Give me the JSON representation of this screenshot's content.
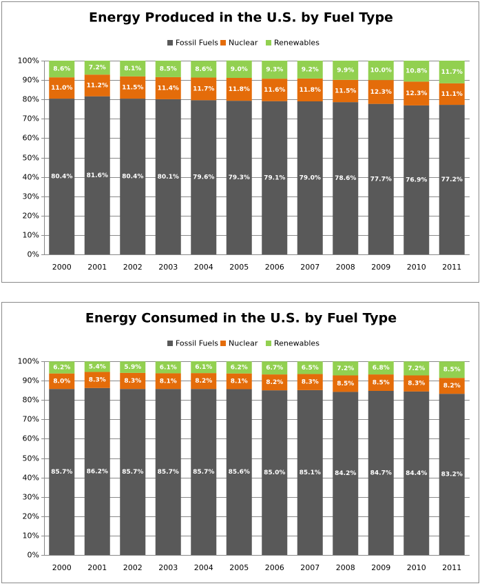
{
  "chart_data": [
    {
      "type": "stacked-bar",
      "title": "Energy Produced in the U.S. by Fuel Type",
      "categories": [
        "2000",
        "2001",
        "2002",
        "2003",
        "2004",
        "2005",
        "2006",
        "2007",
        "2008",
        "2009",
        "2010",
        "2011"
      ],
      "series": [
        {
          "name": "Fossil Fuels",
          "color": "#595959",
          "values": [
            80.4,
            81.6,
            80.4,
            80.1,
            79.6,
            79.3,
            79.1,
            79.0,
            78.6,
            77.7,
            76.9,
            77.2
          ],
          "value_labels": [
            "80.4%",
            "81.6%",
            "80.4%",
            "80.1%",
            "79.6%",
            "79.3%",
            "79.1%",
            "79.0%",
            "78.6%",
            "77.7%",
            "76.9%",
            "77.2%"
          ]
        },
        {
          "name": "Nuclear",
          "color": "#e46c0a",
          "values": [
            11.0,
            11.2,
            11.5,
            11.4,
            11.7,
            11.8,
            11.6,
            11.8,
            11.5,
            12.3,
            12.3,
            11.1
          ],
          "value_labels": [
            "11.0%",
            "11.2%",
            "11.5%",
            "11.4%",
            "11.7%",
            "11.8%",
            "11.6%",
            "11.8%",
            "11.5%",
            "12.3%",
            "12.3%",
            "11.1%"
          ]
        },
        {
          "name": "Renewables",
          "color": "#92d050",
          "values": [
            8.6,
            7.2,
            8.1,
            8.5,
            8.6,
            9.0,
            9.3,
            9.2,
            9.9,
            10.0,
            10.8,
            11.7
          ],
          "value_labels": [
            "8.6%",
            "7.2%",
            "8.1%",
            "8.5%",
            "8.6%",
            "9.0%",
            "9.3%",
            "9.2%",
            "9.9%",
            "10.0%",
            "10.8%",
            "11.7%"
          ]
        }
      ],
      "ylim": [
        0,
        100
      ],
      "yticks": [
        {
          "value": 0,
          "label": "0%"
        },
        {
          "value": 10,
          "label": "10%"
        },
        {
          "value": 20,
          "label": "20%"
        },
        {
          "value": 30,
          "label": "30%"
        },
        {
          "value": 40,
          "label": "40%"
        },
        {
          "value": 50,
          "label": "50%"
        },
        {
          "value": 60,
          "label": "60%"
        },
        {
          "value": 70,
          "label": "70%"
        },
        {
          "value": 80,
          "label": "80%"
        },
        {
          "value": 90,
          "label": "90%"
        },
        {
          "value": 100,
          "label": "100%"
        }
      ],
      "grid": true,
      "legend": "top"
    },
    {
      "type": "stacked-bar",
      "title": "Energy Consumed in the U.S. by Fuel Type",
      "categories": [
        "2000",
        "2001",
        "2002",
        "2003",
        "2004",
        "2005",
        "2006",
        "2007",
        "2008",
        "2009",
        "2010",
        "2011"
      ],
      "series": [
        {
          "name": "Fossil Fuels",
          "color": "#595959",
          "values": [
            85.7,
            86.2,
            85.7,
            85.7,
            85.7,
            85.6,
            85.0,
            85.1,
            84.2,
            84.7,
            84.4,
            83.2
          ],
          "value_labels": [
            "85.7%",
            "86.2%",
            "85.7%",
            "85.7%",
            "85.7%",
            "85.6%",
            "85.0%",
            "85.1%",
            "84.2%",
            "84.7%",
            "84.4%",
            "83.2%"
          ]
        },
        {
          "name": "Nuclear",
          "color": "#e46c0a",
          "values": [
            8.0,
            8.3,
            8.3,
            8.1,
            8.2,
            8.1,
            8.2,
            8.3,
            8.5,
            8.5,
            8.3,
            8.2
          ],
          "value_labels": [
            "8.0%",
            "8.3%",
            "8.3%",
            "8.1%",
            "8.2%",
            "8.1%",
            "8.2%",
            "8.3%",
            "8.5%",
            "8.5%",
            "8.3%",
            "8.2%"
          ]
        },
        {
          "name": "Renewables",
          "color": "#92d050",
          "values": [
            6.2,
            5.4,
            5.9,
            6.1,
            6.1,
            6.2,
            6.7,
            6.5,
            7.2,
            6.8,
            7.2,
            8.5
          ],
          "value_labels": [
            "6.2%",
            "5.4%",
            "5.9%",
            "6.1%",
            "6.1%",
            "6.2%",
            "6.7%",
            "6.5%",
            "7.2%",
            "6.8%",
            "7.2%",
            "8.5%"
          ]
        }
      ],
      "ylim": [
        0,
        100
      ],
      "yticks": [
        {
          "value": 0,
          "label": "0%"
        },
        {
          "value": 10,
          "label": "10%"
        },
        {
          "value": 20,
          "label": "20%"
        },
        {
          "value": 30,
          "label": "30%"
        },
        {
          "value": 40,
          "label": "40%"
        },
        {
          "value": 50,
          "label": "50%"
        },
        {
          "value": 60,
          "label": "60%"
        },
        {
          "value": 70,
          "label": "70%"
        },
        {
          "value": 80,
          "label": "80%"
        },
        {
          "value": 90,
          "label": "90%"
        },
        {
          "value": 100,
          "label": "100%"
        }
      ],
      "grid": true,
      "legend": "top"
    }
  ]
}
